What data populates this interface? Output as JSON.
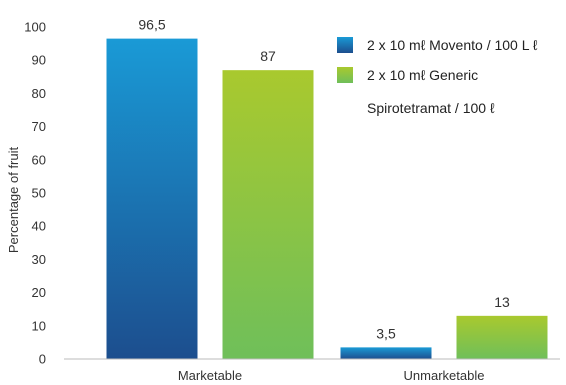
{
  "chart_data": {
    "type": "bar",
    "categories": [
      "Marketable",
      "Unmarketable"
    ],
    "series": [
      {
        "name": "2 x 10 mℓ Movento / 100 L ℓ",
        "values": [
          96.5,
          3.5
        ],
        "value_labels": [
          "96,5",
          "3,5"
        ],
        "color_top": "#1a9ad6",
        "color_bottom": "#1c4e8e"
      },
      {
        "name_line1": "2 x 10 mℓ Generic",
        "name_line2": "Spirotetramat / 100 ℓ",
        "values": [
          87,
          13
        ],
        "value_labels": [
          "87",
          "13"
        ],
        "color_top": "#a9c92e",
        "color_bottom": "#6fbf5a"
      }
    ],
    "ylabel": "Percentage of fruit",
    "ylim": [
      0,
      100
    ],
    "yticks": [
      "0",
      "10",
      "20",
      "30",
      "40",
      "50",
      "60",
      "70",
      "80",
      "90",
      "100"
    ],
    "legend_position": "top-right",
    "grid": false
  }
}
